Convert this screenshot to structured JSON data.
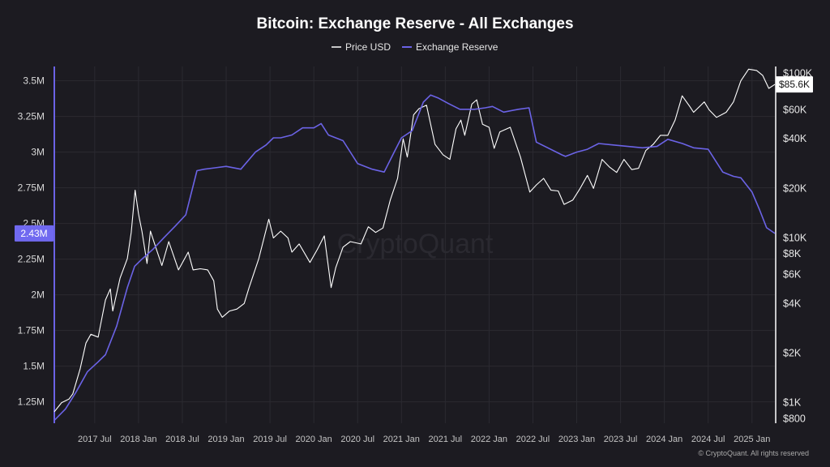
{
  "title": "Bitcoin: Exchange Reserve - All Exchanges",
  "watermark": "CryptoQuant",
  "footer": "© CryptoQuant. All rights reserved",
  "colors": {
    "background": "#1c1b21",
    "reserve": "#6b63e6",
    "price": "#ffffff",
    "left_badge": "#7069f0",
    "grid": "#2b2a31"
  },
  "chart_data": {
    "type": "line",
    "title": "Bitcoin: Exchange Reserve - All Exchanges",
    "legend": {
      "position": "top-center",
      "items": [
        "Price USD",
        "Exchange Reserve"
      ]
    },
    "x_ticks": [
      "2017 Jul",
      "2018 Jan",
      "2018 Jul",
      "2019 Jan",
      "2019 Jul",
      "2020 Jan",
      "2020 Jul",
      "2021 Jan",
      "2021 Jul",
      "2022 Jan",
      "2022 Jul",
      "2023 Jan",
      "2023 Jul",
      "2024 Jan",
      "2024 Jul",
      "2025 Jan"
    ],
    "x_range": [
      "2017-01-15",
      "2025-04-05"
    ],
    "y_left": {
      "label": "",
      "range": [
        1100000,
        3600000
      ],
      "ticks": [
        1250000,
        1500000,
        1750000,
        2000000,
        2250000,
        2500000,
        2750000,
        3000000,
        3250000,
        3500000
      ],
      "tick_labels": [
        "1.25M",
        "1.5M",
        "1.75M",
        "2M",
        "2.25M",
        "2.5M",
        "2.75M",
        "3M",
        "3.25M",
        "3.5M"
      ],
      "current_value_badge": "2.43M"
    },
    "y_right": {
      "label": "",
      "scale": "log",
      "range": [
        750,
        110000
      ],
      "ticks": [
        800,
        1000,
        2000,
        4000,
        6000,
        8000,
        10000,
        20000,
        40000,
        60000,
        100000
      ],
      "tick_labels": [
        "$800",
        "$1K",
        "$2K",
        "$4K",
        "$6K",
        "$8K",
        "$10K",
        "$20K",
        "$40K",
        "$60K",
        "$100K"
      ],
      "current_value_badge": "$85.6K"
    },
    "grid": true,
    "series": [
      {
        "name": "Price USD",
        "axis": "right",
        "x": [
          "2017-01-15",
          "2017-02-15",
          "2017-03-15",
          "2017-04-01",
          "2017-05-01",
          "2017-05-25",
          "2017-06-15",
          "2017-07-15",
          "2017-08-15",
          "2017-09-05",
          "2017-09-15",
          "2017-10-15",
          "2017-11-15",
          "2017-12-01",
          "2017-12-17",
          "2018-01-01",
          "2018-01-15",
          "2018-02-06",
          "2018-02-20",
          "2018-03-15",
          "2018-04-07",
          "2018-05-05",
          "2018-06-15",
          "2018-07-25",
          "2018-08-15",
          "2018-09-15",
          "2018-10-15",
          "2018-11-10",
          "2018-11-25",
          "2018-12-15",
          "2019-01-15",
          "2019-02-15",
          "2019-03-15",
          "2019-04-05",
          "2019-05-15",
          "2019-06-26",
          "2019-07-15",
          "2019-08-15",
          "2019-09-15",
          "2019-10-01",
          "2019-11-01",
          "2019-12-15",
          "2020-01-15",
          "2020-02-14",
          "2020-03-12",
          "2020-04-01",
          "2020-05-01",
          "2020-06-01",
          "2020-07-15",
          "2020-08-15",
          "2020-09-15",
          "2020-10-15",
          "2020-11-15",
          "2020-12-15",
          "2021-01-08",
          "2021-01-25",
          "2021-02-21",
          "2021-03-13",
          "2021-04-14",
          "2021-05-19",
          "2021-06-22",
          "2021-07-20",
          "2021-08-15",
          "2021-09-05",
          "2021-09-21",
          "2021-10-20",
          "2021-11-10",
          "2021-12-04",
          "2022-01-01",
          "2022-01-22",
          "2022-02-15",
          "2022-03-28",
          "2022-05-10",
          "2022-06-18",
          "2022-07-15",
          "2022-08-15",
          "2022-09-15",
          "2022-10-15",
          "2022-11-09",
          "2022-12-15",
          "2023-01-15",
          "2023-02-15",
          "2023-03-10",
          "2023-04-15",
          "2023-05-15",
          "2023-06-15",
          "2023-07-15",
          "2023-08-17",
          "2023-09-15",
          "2023-10-15",
          "2023-11-15",
          "2023-12-15",
          "2024-01-15",
          "2024-02-15",
          "2024-03-14",
          "2024-04-15",
          "2024-05-01",
          "2024-06-15",
          "2024-07-05",
          "2024-08-05",
          "2024-09-15",
          "2024-10-15",
          "2024-11-15",
          "2024-12-17",
          "2025-01-20",
          "2025-02-15",
          "2025-03-10",
          "2025-04-05"
        ],
        "values": [
          880,
          1000,
          1050,
          1130,
          1600,
          2300,
          2600,
          2500,
          4200,
          4900,
          3600,
          5700,
          7500,
          10800,
          19500,
          14000,
          11000,
          7000,
          11000,
          8500,
          6800,
          9500,
          6400,
          8200,
          6400,
          6500,
          6400,
          5500,
          3700,
          3300,
          3600,
          3700,
          4000,
          5000,
          7500,
          13000,
          10000,
          11000,
          10000,
          8200,
          9200,
          7100,
          8500,
          10300,
          5000,
          6600,
          8800,
          9500,
          9200,
          11700,
          10800,
          11500,
          17000,
          23000,
          40000,
          31000,
          56000,
          61000,
          64000,
          37000,
          32000,
          30000,
          46000,
          52000,
          42000,
          65000,
          69000,
          49000,
          47000,
          35000,
          44000,
          47000,
          31000,
          19000,
          21000,
          23000,
          19500,
          19300,
          16000,
          17000,
          20000,
          24000,
          20000,
          30000,
          27000,
          25000,
          30000,
          26000,
          26500,
          34000,
          37000,
          42000,
          42000,
          52000,
          73000,
          63000,
          58000,
          67000,
          60000,
          54000,
          58000,
          67000,
          90000,
          106000,
          104000,
          97000,
          81000,
          85600
        ]
      },
      {
        "name": "Exchange Reserve",
        "axis": "left",
        "x": [
          "2017-01-15",
          "2017-03-01",
          "2017-04-15",
          "2017-06-01",
          "2017-07-15",
          "2017-08-15",
          "2017-10-01",
          "2017-11-15",
          "2017-12-15",
          "2018-01-15",
          "2018-03-01",
          "2018-04-15",
          "2018-06-01",
          "2018-07-15",
          "2018-09-01",
          "2018-10-01",
          "2018-11-15",
          "2019-01-01",
          "2019-03-01",
          "2019-05-01",
          "2019-06-15",
          "2019-07-15",
          "2019-08-15",
          "2019-10-01",
          "2019-11-15",
          "2020-01-01",
          "2020-02-01",
          "2020-03-01",
          "2020-05-01",
          "2020-07-01",
          "2020-09-01",
          "2020-10-20",
          "2020-12-01",
          "2021-01-01",
          "2021-02-15",
          "2021-04-01",
          "2021-05-01",
          "2021-06-01",
          "2021-07-15",
          "2021-09-01",
          "2021-11-01",
          "2021-12-15",
          "2022-01-15",
          "2022-03-01",
          "2022-05-01",
          "2022-06-15",
          "2022-07-15",
          "2022-11-01",
          "2022-11-15",
          "2023-01-01",
          "2023-02-15",
          "2023-04-01",
          "2023-06-01",
          "2023-08-01",
          "2023-10-01",
          "2023-12-01",
          "2024-01-15",
          "2024-03-15",
          "2024-05-01",
          "2024-07-01",
          "2024-09-01",
          "2024-10-15",
          "2024-11-15",
          "2025-01-01",
          "2025-02-01",
          "2025-03-01",
          "2025-04-05"
        ],
        "values": [
          1120000,
          1200000,
          1320000,
          1460000,
          1530000,
          1580000,
          1780000,
          2050000,
          2200000,
          2250000,
          2320000,
          2400000,
          2480000,
          2560000,
          2870000,
          2880000,
          2890000,
          2900000,
          2880000,
          3000000,
          3050000,
          3100000,
          3100000,
          3120000,
          3170000,
          3170000,
          3200000,
          3120000,
          3080000,
          2920000,
          2880000,
          2860000,
          3000000,
          3100000,
          3150000,
          3350000,
          3400000,
          3380000,
          3340000,
          3300000,
          3300000,
          3310000,
          3320000,
          3280000,
          3300000,
          3310000,
          3070000,
          2980000,
          2970000,
          3000000,
          3020000,
          3060000,
          3050000,
          3040000,
          3030000,
          3040000,
          3090000,
          3060000,
          3030000,
          3020000,
          2860000,
          2830000,
          2820000,
          2720000,
          2600000,
          2470000,
          2430000
        ]
      }
    ]
  }
}
